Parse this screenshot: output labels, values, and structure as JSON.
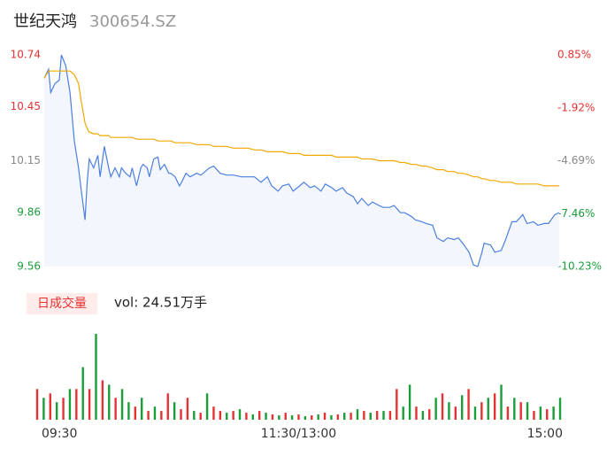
{
  "header": {
    "name": "世纪天鸿",
    "code": "300654.SZ"
  },
  "chart_data": [
    {
      "type": "line",
      "x": [
        0,
        2,
        3,
        5,
        7,
        8,
        10,
        12,
        13,
        14,
        16,
        17,
        19,
        20,
        21,
        23,
        25,
        26,
        28,
        30,
        31,
        33,
        35,
        36,
        38,
        40,
        41,
        43,
        45,
        46,
        48,
        49,
        51,
        53,
        54,
        56,
        58,
        59,
        61,
        63,
        64,
        66,
        68,
        71,
        73,
        77,
        79,
        82,
        85,
        88,
        92,
        95,
        98,
        101,
        104,
        106,
        109,
        111,
        114,
        116,
        119,
        121,
        124,
        126,
        129,
        131,
        134,
        136,
        139,
        141,
        144,
        146,
        148,
        151,
        153,
        156,
        158,
        161,
        163,
        166,
        168,
        171,
        173,
        176,
        178,
        181,
        183,
        186,
        188,
        191,
        193,
        195,
        198,
        200,
        202,
        204,
        205,
        208,
        210,
        213,
        215,
        218,
        220,
        223,
        225,
        228,
        230,
        233,
        235,
        238,
        240
      ],
      "xlim": [
        0,
        240
      ],
      "series": [
        {
          "color": "#4a7fe0",
          "values": [
            10.61,
            10.66,
            10.53,
            10.58,
            10.6,
            10.74,
            10.68,
            10.53,
            10.4,
            10.26,
            10.11,
            10.01,
            9.82,
            10.03,
            10.16,
            10.11,
            10.18,
            10.06,
            10.23,
            10.11,
            10.06,
            10.11,
            10.06,
            10.11,
            10.08,
            10.06,
            10.11,
            10.01,
            10.11,
            10.13,
            10.11,
            10.06,
            10.16,
            10.17,
            10.1,
            10.13,
            10.08,
            10.08,
            10.06,
            10.01,
            10.03,
            10.08,
            10.06,
            10.08,
            10.07,
            10.11,
            10.12,
            10.08,
            10.07,
            10.07,
            10.06,
            10.06,
            10.06,
            10.03,
            10.06,
            10.01,
            9.98,
            10.01,
            10.02,
            9.98,
            10.01,
            10.03,
            10.0,
            10.01,
            9.98,
            10.02,
            10.0,
            9.98,
            10.0,
            9.97,
            9.95,
            9.91,
            9.94,
            9.9,
            9.92,
            9.9,
            9.89,
            9.89,
            9.9,
            9.86,
            9.86,
            9.84,
            9.82,
            9.81,
            9.8,
            9.79,
            9.72,
            9.7,
            9.72,
            9.71,
            9.72,
            9.69,
            9.64,
            9.57,
            9.56,
            9.64,
            9.69,
            9.68,
            9.64,
            9.65,
            9.71,
            9.81,
            9.81,
            9.85,
            9.8,
            9.81,
            9.79,
            9.8,
            9.8,
            9.85,
            9.86
          ]
        },
        {
          "color": "#f0a800",
          "values": [
            10.61,
            10.65,
            10.65,
            10.65,
            10.65,
            10.65,
            10.65,
            10.65,
            10.64,
            10.63,
            10.58,
            10.5,
            10.36,
            10.33,
            10.31,
            10.3,
            10.3,
            10.29,
            10.29,
            10.29,
            10.28,
            10.28,
            10.28,
            10.28,
            10.28,
            10.28,
            10.28,
            10.27,
            10.27,
            10.27,
            10.27,
            10.27,
            10.27,
            10.26,
            10.26,
            10.26,
            10.26,
            10.26,
            10.25,
            10.25,
            10.25,
            10.25,
            10.25,
            10.24,
            10.24,
            10.24,
            10.23,
            10.23,
            10.23,
            10.22,
            10.22,
            10.22,
            10.21,
            10.21,
            10.2,
            10.2,
            10.2,
            10.2,
            10.19,
            10.19,
            10.19,
            10.18,
            10.18,
            10.18,
            10.18,
            10.18,
            10.18,
            10.17,
            10.17,
            10.17,
            10.17,
            10.17,
            10.16,
            10.16,
            10.16,
            10.15,
            10.15,
            10.15,
            10.15,
            10.14,
            10.14,
            10.13,
            10.13,
            10.12,
            10.12,
            10.11,
            10.1,
            10.1,
            10.09,
            10.09,
            10.08,
            10.08,
            10.07,
            10.06,
            10.06,
            10.05,
            10.05,
            10.04,
            10.04,
            10.03,
            10.03,
            10.03,
            10.02,
            10.02,
            10.02,
            10.02,
            10.02,
            10.01,
            10.01,
            10.01,
            10.01
          ]
        }
      ],
      "ylim": [
        9.56,
        10.74
      ],
      "yticks": [
        10.74,
        10.45,
        10.15,
        9.86,
        9.56
      ],
      "y2lim": [
        -10.23,
        0.85
      ],
      "y2ticks": [
        {
          "value": 0.85,
          "label": "0.85%"
        },
        {
          "value": -1.92,
          "label": "-1.92%"
        },
        {
          "value": -4.69,
          "label": "-4.69%"
        },
        {
          "value": -7.46,
          "label": "-7.46%"
        },
        {
          "value": -10.23,
          "label": "-10.23%"
        }
      ],
      "tick_colors": [
        "#e63232",
        "#e63232",
        "#888888",
        "#1a9e3a",
        "#1a9e3a"
      ],
      "area_color": "#f3f6fd"
    },
    {
      "type": "bar",
      "label": "日成交量",
      "annotation": "vol: 24.51万手",
      "x": [
        0,
        3,
        6,
        9,
        12,
        15,
        18,
        21,
        24,
        27,
        30,
        33,
        36,
        39,
        42,
        45,
        48,
        51,
        54,
        57,
        60,
        63,
        66,
        69,
        72,
        75,
        78,
        81,
        84,
        87,
        90,
        93,
        96,
        99,
        102,
        105,
        108,
        111,
        114,
        117,
        120,
        123,
        126,
        129,
        132,
        135,
        138,
        141,
        144,
        147,
        150,
        153,
        156,
        159,
        162,
        165,
        168,
        171,
        174,
        177,
        180,
        183,
        186,
        189,
        192,
        195,
        198,
        201,
        204,
        207,
        210,
        213,
        216,
        219,
        222,
        225,
        228,
        231,
        234,
        237,
        240
      ],
      "values": [
        35,
        25,
        30,
        20,
        25,
        35,
        35,
        60,
        35,
        98,
        45,
        40,
        25,
        35,
        20,
        15,
        25,
        10,
        15,
        10,
        30,
        20,
        12,
        25,
        10,
        8,
        30,
        15,
        10,
        8,
        10,
        12,
        8,
        6,
        10,
        8,
        6,
        5,
        8,
        5,
        6,
        4,
        5,
        6,
        8,
        5,
        6,
        8,
        8,
        12,
        10,
        8,
        10,
        10,
        10,
        35,
        15,
        40,
        15,
        10,
        12,
        25,
        30,
        20,
        15,
        28,
        35,
        15,
        20,
        25,
        30,
        40,
        15,
        25,
        20,
        20,
        10,
        15,
        12,
        15,
        25
      ],
      "up": [
        1,
        0,
        1,
        0,
        1,
        0,
        1,
        0,
        1,
        0,
        1,
        0,
        1,
        0,
        0,
        1,
        0,
        1,
        0,
        1,
        1,
        0,
        1,
        1,
        0,
        1,
        0,
        1,
        1,
        0,
        1,
        0,
        1,
        0,
        1,
        0,
        1,
        0,
        1,
        0,
        1,
        0,
        1,
        0,
        1,
        0,
        1,
        0,
        1,
        0,
        1,
        0,
        1,
        0,
        1,
        1,
        0,
        0,
        1,
        0,
        1,
        0,
        1,
        0,
        1,
        0,
        1,
        0,
        1,
        0,
        1,
        0,
        1,
        0,
        1,
        0,
        1,
        0,
        1,
        0,
        0
      ],
      "up_color": "#e63232",
      "down_color": "#1a9e3a",
      "xlim": [
        0,
        240
      ],
      "ylim": [
        0,
        100
      ],
      "xticks": [
        {
          "value": 0,
          "label": "09:30"
        },
        {
          "value": 120,
          "label": "11:30/13:00"
        },
        {
          "value": 240,
          "label": "15:00"
        }
      ]
    }
  ]
}
